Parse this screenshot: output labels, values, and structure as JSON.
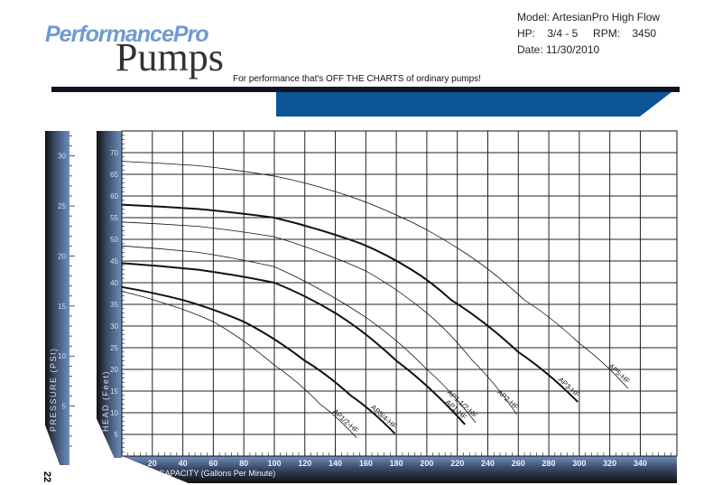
{
  "header": {
    "logo_text_1": "PerformancePro",
    "logo_text_2": "Pumps",
    "tagline": "For performance that's  OFF THE CHARTS of ordinary pumps!",
    "model": "Model: ArtesianPro High Flow",
    "hp": "HP:    3/4 - 5     RPM:    3450",
    "date": "Date: 11/30/2010"
  },
  "page_number": "22",
  "colors": {
    "bar_blue": "#0c5596",
    "axis_blue": "#6e8fbd",
    "curve": "#111111"
  },
  "chart_data": {
    "type": "line",
    "xlabel": "CAPACITY (Gallons Per Minute)",
    "ylabel": "HEAD (Feet)",
    "ylabel2": "PRESSURE (PSI)",
    "xlim": [
      0,
      364
    ],
    "ylim": [
      0,
      75
    ],
    "y2lim": [
      0,
      32.5
    ],
    "xticks": [
      20,
      40,
      60,
      80,
      100,
      120,
      140,
      160,
      180,
      200,
      220,
      240,
      260,
      280,
      300,
      320,
      340
    ],
    "yticks": [
      5,
      10,
      15,
      20,
      25,
      30,
      35,
      40,
      45,
      50,
      55,
      60,
      65,
      70
    ],
    "y2ticks": [
      5,
      10,
      15,
      20,
      25,
      30
    ],
    "grid": true,
    "series": [
      {
        "name": "AP5-HF",
        "weight": "thin",
        "x": [
          0,
          50,
          100,
          140,
          180,
          220,
          264,
          300,
          332
        ],
        "y": [
          68,
          67,
          64.6,
          61,
          55.6,
          48,
          36,
          26,
          15.6
        ]
      },
      {
        "name": "AP3-HF",
        "weight": "thick",
        "x": [
          0,
          50,
          100,
          157,
          190,
          216,
          260,
          299
        ],
        "y": [
          58,
          57,
          55,
          49,
          43,
          36,
          24,
          12.5
        ]
      },
      {
        "name": "AP2-HF",
        "weight": "thin",
        "x": [
          0,
          50,
          100,
          160,
          200,
          230,
          259
        ],
        "y": [
          54,
          53,
          50.6,
          42.7,
          33,
          22,
          9.6
        ]
      },
      {
        "name": "AP1 1/2-HF",
        "weight": "thin",
        "x": [
          0,
          50,
          100,
          160,
          200,
          232
        ],
        "y": [
          48.5,
          47,
          43.7,
          32,
          20,
          7.7
        ]
      },
      {
        "name": "AP1-HF",
        "weight": "thick",
        "x": [
          0,
          50,
          100,
          140,
          180,
          225
        ],
        "y": [
          44.5,
          43,
          40,
          33,
          22,
          7.3
        ]
      },
      {
        "name": "AP3/4-HF",
        "weight": "thick",
        "x": [
          0,
          40,
          80,
          120,
          150,
          179
        ],
        "y": [
          39,
          36,
          31,
          22,
          14,
          5.2
        ]
      },
      {
        "name": "AP1/2-HF",
        "weight": "thin",
        "x": [
          0,
          30,
          60,
          100,
          130,
          154
        ],
        "y": [
          38,
          35,
          31,
          21,
          12,
          4.2
        ]
      }
    ]
  }
}
